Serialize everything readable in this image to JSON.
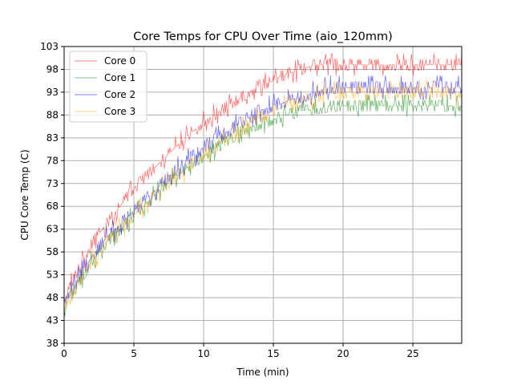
{
  "chart_data": {
    "type": "line",
    "title": "Core Temps for CPU Over Time (aio_120mm)",
    "xlabel": "Time (min)",
    "ylabel": "CPU Core Temp (C)",
    "xlim": [
      0,
      28.5
    ],
    "ylim": [
      38,
      103
    ],
    "xticks": [
      0,
      5,
      10,
      15,
      20,
      25
    ],
    "yticks": [
      38,
      43,
      48,
      53,
      58,
      63,
      68,
      73,
      78,
      83,
      88,
      93,
      98,
      103
    ],
    "grid": true,
    "legend_position": "top-left",
    "series": [
      {
        "name": "Core 0",
        "color": "#ff0000",
        "x": [
          0,
          0.5,
          1,
          1.5,
          2,
          2.5,
          3,
          3.5,
          4,
          4.5,
          5,
          5.5,
          6,
          6.5,
          7,
          7.5,
          8,
          8.5,
          9,
          9.5,
          10,
          10.5,
          11,
          11.5,
          12,
          12.5,
          13,
          13.5,
          14,
          14.5,
          15,
          15.5,
          16,
          16.5,
          17,
          17.5,
          18,
          18.5,
          19,
          19.5,
          20,
          21,
          22,
          23,
          24,
          25,
          26,
          27,
          28,
          28.5
        ],
        "values": [
          47,
          51,
          54,
          57,
          60,
          62,
          64,
          66,
          68,
          70,
          72,
          73.5,
          75,
          76.5,
          78,
          79.5,
          81,
          82.5,
          84,
          85,
          86.5,
          87.5,
          88.5,
          89.5,
          90.5,
          91.5,
          92.5,
          93.5,
          94.5,
          95,
          95.5,
          96.5,
          97,
          97.5,
          98,
          98.5,
          99,
          99,
          99,
          99,
          99,
          99,
          99,
          99,
          99,
          99,
          99,
          99,
          99,
          99
        ],
        "noise": 1.2
      },
      {
        "name": "Core 1",
        "color": "#008000",
        "x": [
          0,
          0.5,
          1,
          1.5,
          2,
          2.5,
          3,
          3.5,
          4,
          4.5,
          5,
          5.5,
          6,
          6.5,
          7,
          7.5,
          8,
          8.5,
          9,
          9.5,
          10,
          10.5,
          11,
          11.5,
          12,
          12.5,
          13,
          13.5,
          14,
          14.5,
          15,
          15.5,
          16,
          16.5,
          17,
          17.5,
          18,
          18.5,
          19,
          19.5,
          20,
          21,
          22,
          23,
          24,
          25,
          26,
          27,
          28,
          28.5
        ],
        "values": [
          46,
          48.5,
          51,
          53.5,
          56,
          58,
          60,
          61.5,
          63,
          64.5,
          66,
          67.5,
          69,
          70.5,
          72,
          73.5,
          74.5,
          75.5,
          77,
          78,
          79,
          80,
          81,
          82,
          83,
          84,
          85,
          85.5,
          86,
          86.5,
          87,
          87.5,
          88,
          88.5,
          89,
          89,
          89.5,
          89.5,
          90,
          90,
          90,
          90,
          90,
          90,
          90,
          90,
          90,
          90,
          90,
          90
        ],
        "noise": 1.2
      },
      {
        "name": "Core 2",
        "color": "#0000ff",
        "x": [
          0,
          0.5,
          1,
          1.5,
          2,
          2.5,
          3,
          3.5,
          4,
          4.5,
          5,
          5.5,
          6,
          6.5,
          7,
          7.5,
          8,
          8.5,
          9,
          9.5,
          10,
          10.5,
          11,
          11.5,
          12,
          12.5,
          13,
          13.5,
          14,
          14.5,
          15,
          15.5,
          16,
          16.5,
          17,
          17.5,
          18,
          18.5,
          19,
          19.5,
          20,
          21,
          22,
          23,
          24,
          25,
          26,
          27,
          28,
          28.5
        ],
        "values": [
          46,
          49,
          52,
          54.5,
          57,
          59,
          61,
          62.5,
          64,
          65.5,
          67,
          68.5,
          70,
          71.5,
          73,
          74.5,
          76,
          77,
          78.5,
          79.5,
          81,
          82,
          83,
          84,
          85,
          86,
          87,
          88,
          89,
          89.5,
          90,
          90.5,
          91,
          91.5,
          92,
          92.5,
          93,
          93.5,
          94,
          94,
          94,
          94,
          94,
          94,
          94,
          94,
          94,
          94,
          94,
          94
        ],
        "noise": 1.3
      },
      {
        "name": "Core 3",
        "color": "#ffa500",
        "x": [
          0,
          0.5,
          1,
          1.5,
          2,
          2.5,
          3,
          3.5,
          4,
          4.5,
          5,
          5.5,
          6,
          6.5,
          7,
          7.5,
          8,
          8.5,
          9,
          9.5,
          10,
          10.5,
          11,
          11.5,
          12,
          12.5,
          13,
          13.5,
          14,
          14.5,
          15,
          15.5,
          16,
          16.5,
          17,
          17.5,
          18,
          18.5,
          19,
          19.5,
          20,
          21,
          22,
          23,
          24,
          25,
          26,
          27,
          28,
          28.5
        ],
        "values": [
          45,
          48,
          51,
          53.5,
          56,
          58,
          60,
          61.5,
          63,
          64.5,
          66,
          67.5,
          69,
          70.5,
          72,
          73,
          74.5,
          75.5,
          77,
          78,
          79.5,
          80.5,
          81.5,
          82.5,
          83.5,
          84.5,
          85.5,
          86.5,
          87.5,
          88,
          89,
          89.5,
          90,
          90.5,
          91,
          91.5,
          92,
          92.5,
          93,
          93,
          93,
          93,
          93,
          93,
          93,
          93,
          93,
          93,
          93,
          93
        ],
        "noise": 1.3
      }
    ]
  }
}
